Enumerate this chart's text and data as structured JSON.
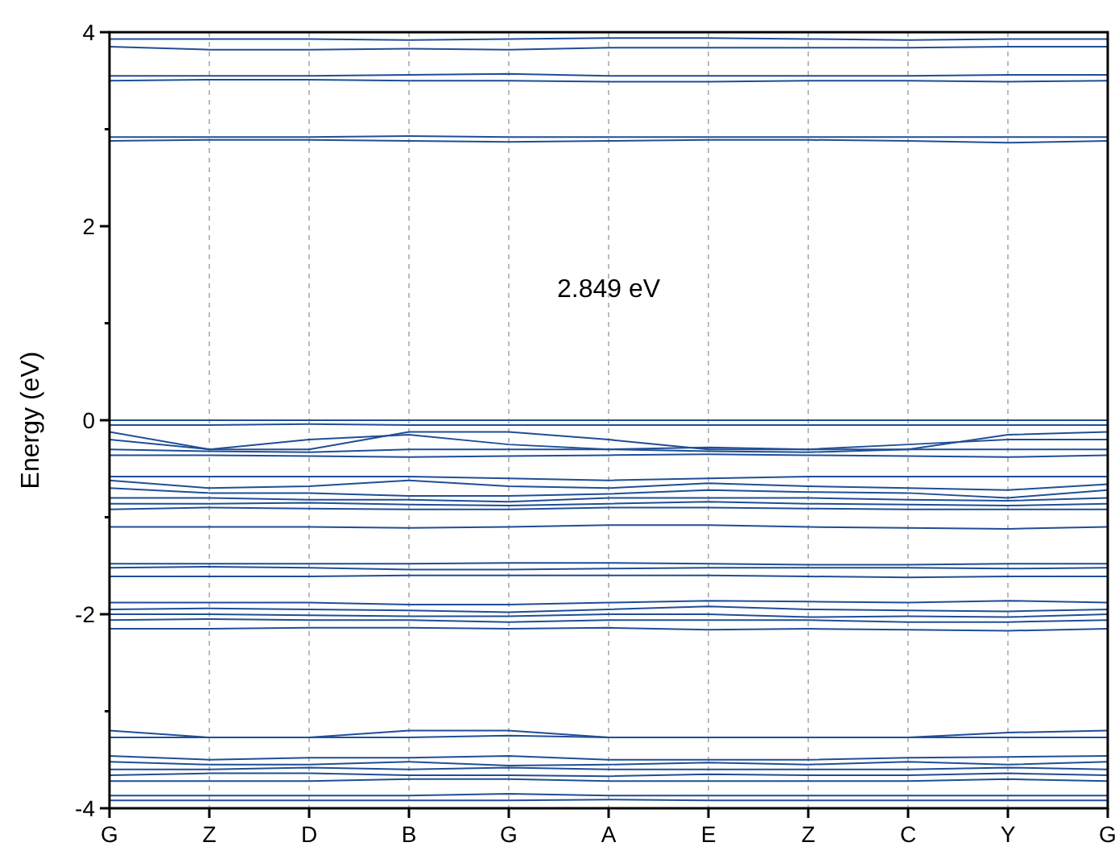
{
  "chart_data": {
    "type": "line",
    "ylabel": "Energy (eV)",
    "categories": [
      "G",
      "Z",
      "D",
      "B",
      "G",
      "A",
      "E",
      "Z",
      "C",
      "Y",
      "G"
    ],
    "ylim": [
      -4,
      4
    ],
    "yticks": [
      -4,
      {
        "value": -3,
        "label": null
      },
      -2,
      {
        "value": -1,
        "label": null
      },
      0,
      {
        "value": 1,
        "label": null
      },
      2,
      {
        "value": 3,
        "label": null
      },
      4
    ],
    "grid": "x",
    "marker": "none",
    "line_style": "solid",
    "annotations": [
      "2.849 eV"
    ],
    "series": [
      {
        "color": "#1f4e96",
        "values": [
          3.93,
          3.93,
          3.93,
          3.92,
          3.93,
          3.94,
          3.94,
          3.93,
          3.92,
          3.93,
          3.93
        ]
      },
      {
        "color": "#1f4e96",
        "values": [
          3.85,
          3.82,
          3.82,
          3.83,
          3.82,
          3.84,
          3.84,
          3.84,
          3.84,
          3.85,
          3.85
        ]
      },
      {
        "color": "#1f4e96",
        "values": [
          3.55,
          3.55,
          3.55,
          3.56,
          3.57,
          3.55,
          3.55,
          3.55,
          3.55,
          3.56,
          3.56
        ]
      },
      {
        "color": "#1f4e96",
        "values": [
          3.5,
          3.51,
          3.51,
          3.5,
          3.5,
          3.49,
          3.49,
          3.5,
          3.5,
          3.49,
          3.5
        ]
      },
      {
        "color": "#1f4e96",
        "values": [
          2.92,
          2.92,
          2.92,
          2.93,
          2.92,
          2.92,
          2.92,
          2.92,
          2.92,
          2.92,
          2.92
        ]
      },
      {
        "color": "#1f4e96",
        "values": [
          2.88,
          2.89,
          2.89,
          2.88,
          2.87,
          2.88,
          2.89,
          2.89,
          2.88,
          2.86,
          2.88
        ]
      },
      {
        "color": "#1f4e96",
        "values": [
          0,
          0,
          0,
          0,
          0,
          0,
          0,
          0,
          0,
          0,
          0
        ]
      },
      {
        "color": "#1f4e96",
        "values": [
          -0.05,
          -0.05,
          -0.04,
          -0.05,
          -0.05,
          -0.05,
          -0.05,
          -0.05,
          -0.05,
          -0.05,
          -0.05
        ]
      },
      {
        "color": "#1f4e96",
        "values": [
          -0.12,
          -0.3,
          -0.3,
          -0.12,
          -0.12,
          -0.2,
          -0.3,
          -0.3,
          -0.3,
          -0.15,
          -0.12
        ]
      },
      {
        "color": "#1f4e96",
        "values": [
          -0.2,
          -0.3,
          -0.2,
          -0.15,
          -0.25,
          -0.3,
          -0.28,
          -0.3,
          -0.25,
          -0.2,
          -0.2
        ]
      },
      {
        "color": "#1f4e96",
        "values": [
          -0.3,
          -0.32,
          -0.33,
          -0.3,
          -0.3,
          -0.3,
          -0.32,
          -0.33,
          -0.3,
          -0.3,
          -0.3
        ]
      },
      {
        "color": "#1f4e96",
        "values": [
          -0.36,
          -0.36,
          -0.37,
          -0.38,
          -0.37,
          -0.36,
          -0.35,
          -0.36,
          -0.37,
          -0.38,
          -0.36
        ]
      },
      {
        "color": "#1f4e96",
        "values": [
          -0.58,
          -0.58,
          -0.58,
          -0.58,
          -0.6,
          -0.62,
          -0.6,
          -0.58,
          -0.58,
          -0.58,
          -0.58
        ]
      },
      {
        "color": "#1f4e96",
        "values": [
          -0.62,
          -0.7,
          -0.68,
          -0.62,
          -0.68,
          -0.7,
          -0.65,
          -0.68,
          -0.7,
          -0.72,
          -0.66
        ]
      },
      {
        "color": "#1f4e96",
        "values": [
          -0.7,
          -0.75,
          -0.75,
          -0.78,
          -0.78,
          -0.76,
          -0.72,
          -0.74,
          -0.75,
          -0.8,
          -0.72
        ]
      },
      {
        "color": "#1f4e96",
        "values": [
          -0.8,
          -0.8,
          -0.82,
          -0.82,
          -0.84,
          -0.8,
          -0.8,
          -0.8,
          -0.82,
          -0.83,
          -0.8
        ]
      },
      {
        "color": "#1f4e96",
        "values": [
          -0.86,
          -0.86,
          -0.85,
          -0.87,
          -0.88,
          -0.86,
          -0.84,
          -0.86,
          -0.87,
          -0.88,
          -0.86
        ]
      },
      {
        "color": "#1f4e96",
        "values": [
          -0.92,
          -0.9,
          -0.91,
          -0.92,
          -0.92,
          -0.9,
          -0.9,
          -0.91,
          -0.92,
          -0.92,
          -0.92
        ]
      },
      {
        "color": "#1f4e96",
        "values": [
          -1.1,
          -1.1,
          -1.1,
          -1.11,
          -1.1,
          -1.08,
          -1.08,
          -1.1,
          -1.11,
          -1.12,
          -1.1
        ]
      },
      {
        "color": "#1f4e96",
        "values": [
          -1.48,
          -1.48,
          -1.48,
          -1.48,
          -1.47,
          -1.47,
          -1.48,
          -1.49,
          -1.49,
          -1.48,
          -1.48
        ]
      },
      {
        "color": "#1f4e96",
        "values": [
          -1.52,
          -1.51,
          -1.52,
          -1.54,
          -1.54,
          -1.53,
          -1.52,
          -1.52,
          -1.52,
          -1.53,
          -1.52
        ]
      },
      {
        "color": "#1f4e96",
        "values": [
          -1.61,
          -1.61,
          -1.61,
          -1.6,
          -1.6,
          -1.6,
          -1.6,
          -1.61,
          -1.62,
          -1.61,
          -1.61
        ]
      },
      {
        "color": "#1f4e96",
        "values": [
          -1.88,
          -1.88,
          -1.88,
          -1.9,
          -1.9,
          -1.88,
          -1.86,
          -1.87,
          -1.88,
          -1.86,
          -1.88
        ]
      },
      {
        "color": "#1f4e96",
        "values": [
          -1.95,
          -1.94,
          -1.95,
          -1.96,
          -1.98,
          -1.95,
          -1.92,
          -1.95,
          -1.96,
          -1.97,
          -1.95
        ]
      },
      {
        "color": "#1f4e96",
        "values": [
          -2,
          -2,
          -2.01,
          -2.02,
          -2.02,
          -2,
          -2,
          -2.03,
          -2.02,
          -2.03,
          -2
        ]
      },
      {
        "color": "#1f4e96",
        "values": [
          -2.06,
          -2.05,
          -2.06,
          -2.06,
          -2.08,
          -2.06,
          -2.06,
          -2.06,
          -2.08,
          -2.08,
          -2.06
        ]
      },
      {
        "color": "#1f4e96",
        "values": [
          -2.15,
          -2.15,
          -2.14,
          -2.14,
          -2.15,
          -2.14,
          -2.16,
          -2.15,
          -2.16,
          -2.17,
          -2.15
        ]
      },
      {
        "color": "#1f4e96",
        "values": [
          -3.2,
          -3.27,
          -3.27,
          -3.2,
          -3.2,
          -3.27,
          -3.27,
          -3.27,
          -3.27,
          -3.22,
          -3.2
        ]
      },
      {
        "color": "#1f4e96",
        "values": [
          -3.27,
          -3.27,
          -3.27,
          -3.27,
          -3.25,
          -3.27,
          -3.27,
          -3.27,
          -3.27,
          -3.27,
          -3.27
        ]
      },
      {
        "color": "#1f4e96",
        "values": [
          -3.46,
          -3.5,
          -3.48,
          -3.48,
          -3.46,
          -3.5,
          -3.5,
          -3.5,
          -3.48,
          -3.47,
          -3.46
        ]
      },
      {
        "color": "#1f4e96",
        "values": [
          -3.52,
          -3.55,
          -3.55,
          -3.52,
          -3.56,
          -3.55,
          -3.53,
          -3.55,
          -3.52,
          -3.55,
          -3.52
        ]
      },
      {
        "color": "#1f4e96",
        "values": [
          -3.6,
          -3.6,
          -3.58,
          -3.6,
          -3.58,
          -3.6,
          -3.6,
          -3.6,
          -3.6,
          -3.58,
          -3.6
        ]
      },
      {
        "color": "#1f4e96",
        "values": [
          -3.66,
          -3.64,
          -3.64,
          -3.66,
          -3.66,
          -3.67,
          -3.65,
          -3.66,
          -3.66,
          -3.64,
          -3.66
        ]
      },
      {
        "color": "#1f4e96",
        "values": [
          -3.72,
          -3.72,
          -3.72,
          -3.7,
          -3.7,
          -3.72,
          -3.72,
          -3.72,
          -3.72,
          -3.7,
          -3.72
        ]
      },
      {
        "color": "#1f4e96",
        "values": [
          -3.87,
          -3.87,
          -3.87,
          -3.87,
          -3.85,
          -3.87,
          -3.87,
          -3.87,
          -3.87,
          -3.87,
          -3.87
        ]
      },
      {
        "color": "#1f4e96",
        "values": [
          -3.92,
          -3.92,
          -3.92,
          -3.92,
          -3.92,
          -3.91,
          -3.92,
          -3.92,
          -3.92,
          -3.92,
          -3.92
        ]
      }
    ]
  }
}
